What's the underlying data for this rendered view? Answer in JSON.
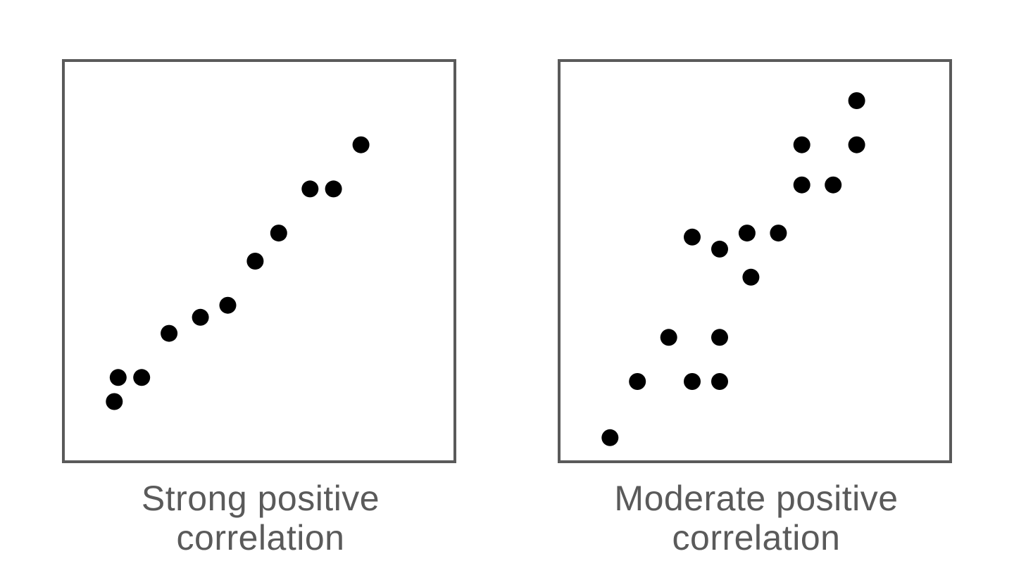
{
  "chart_data": [
    {
      "type": "scatter",
      "title": "",
      "xlabel": "",
      "ylabel": "",
      "grid": false,
      "caption_lines": [
        "Strong positive",
        "correlation"
      ],
      "xlim": [
        0,
        10
      ],
      "ylim": [
        0,
        10
      ],
      "points": [
        {
          "x": 1.3,
          "y": 1.5
        },
        {
          "x": 1.4,
          "y": 2.1
        },
        {
          "x": 2.0,
          "y": 2.1
        },
        {
          "x": 2.7,
          "y": 3.2
        },
        {
          "x": 3.5,
          "y": 3.6
        },
        {
          "x": 4.2,
          "y": 3.9
        },
        {
          "x": 4.9,
          "y": 5.0
        },
        {
          "x": 5.5,
          "y": 5.7
        },
        {
          "x": 6.3,
          "y": 6.8
        },
        {
          "x": 6.9,
          "y": 6.8
        },
        {
          "x": 7.6,
          "y": 7.9
        }
      ]
    },
    {
      "type": "scatter",
      "title": "",
      "xlabel": "",
      "ylabel": "",
      "grid": false,
      "caption_lines": [
        "Moderate positive",
        "correlation"
      ],
      "xlim": [
        0,
        10
      ],
      "ylim": [
        0,
        10
      ],
      "points": [
        {
          "x": 1.3,
          "y": 0.6
        },
        {
          "x": 2.0,
          "y": 2.0
        },
        {
          "x": 2.8,
          "y": 3.1
        },
        {
          "x": 3.4,
          "y": 2.0
        },
        {
          "x": 4.1,
          "y": 2.0
        },
        {
          "x": 4.1,
          "y": 3.1
        },
        {
          "x": 3.4,
          "y": 5.6
        },
        {
          "x": 4.1,
          "y": 5.3
        },
        {
          "x": 4.9,
          "y": 4.6
        },
        {
          "x": 4.8,
          "y": 5.7
        },
        {
          "x": 5.6,
          "y": 5.7
        },
        {
          "x": 6.2,
          "y": 6.9
        },
        {
          "x": 7.0,
          "y": 6.9
        },
        {
          "x": 6.2,
          "y": 7.9
        },
        {
          "x": 7.6,
          "y": 7.9
        },
        {
          "x": 7.6,
          "y": 9.0
        }
      ]
    }
  ],
  "colors": {
    "frame": "#5a5a5a",
    "point": "#000000",
    "caption": "#5a5a5a"
  }
}
